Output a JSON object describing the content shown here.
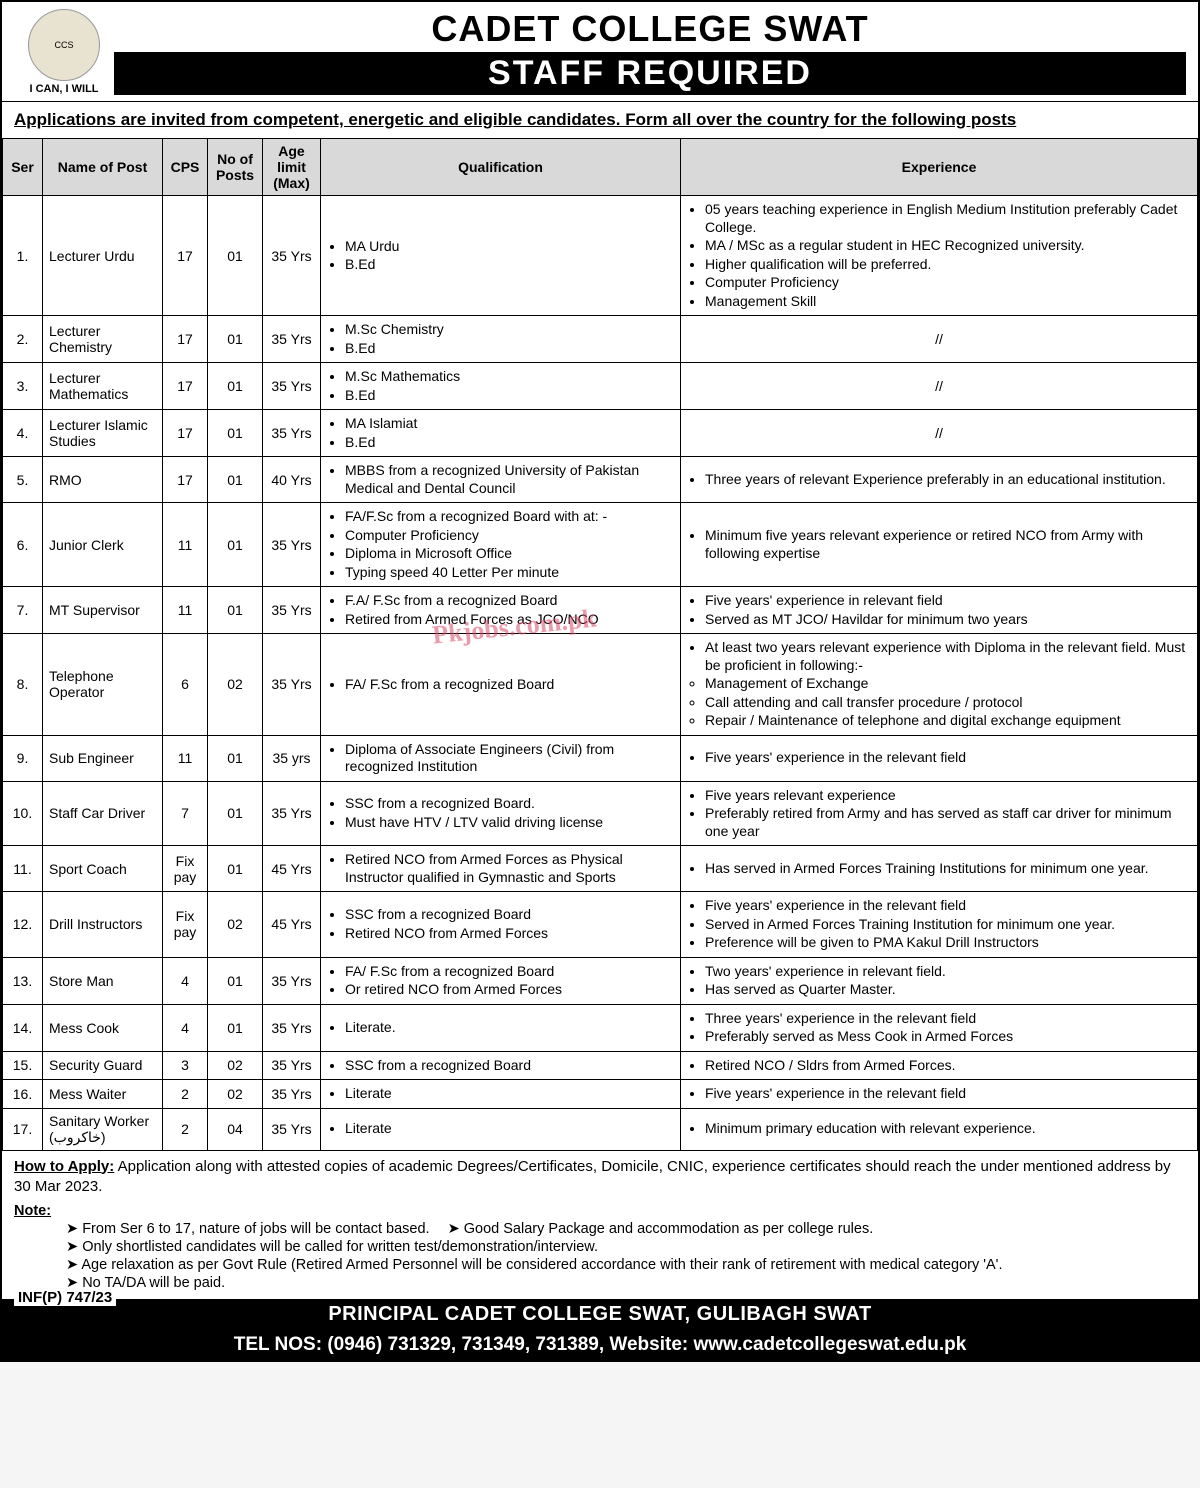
{
  "header": {
    "motto": "I CAN, I WILL",
    "title1": "CADET COLLEGE SWAT",
    "title2": "STAFF REQUIRED"
  },
  "intro": "Applications are invited from competent, energetic and eligible candidates. Form all over the country for the following posts",
  "columns": [
    "Ser",
    "Name of Post",
    "CPS",
    "No of Posts",
    "Age limit (Max)",
    "Qualification",
    "Experience"
  ],
  "col_widths": [
    "40px",
    "120px",
    "45px",
    "55px",
    "58px",
    "360px",
    "auto"
  ],
  "rows": [
    {
      "ser": "1.",
      "post": "Lecturer Urdu",
      "cps": "17",
      "n": "01",
      "age": "35 Yrs",
      "qual": [
        "MA Urdu",
        "B.Ed"
      ],
      "exp": [
        "05 years teaching experience in English Medium Institution preferably Cadet College.",
        "MA / MSc as a regular student in HEC Recognized university.",
        "Higher qualification will be preferred.",
        "Computer Proficiency",
        "Management Skill"
      ]
    },
    {
      "ser": "2.",
      "post": "Lecturer Chemistry",
      "cps": "17",
      "n": "01",
      "age": "35 Yrs",
      "qual": [
        "M.Sc Chemistry",
        "B.Ed"
      ],
      "exp_center": "//"
    },
    {
      "ser": "3.",
      "post": "Lecturer Mathematics",
      "cps": "17",
      "n": "01",
      "age": "35 Yrs",
      "qual": [
        "M.Sc Mathematics",
        "B.Ed"
      ],
      "exp_center": "//"
    },
    {
      "ser": "4.",
      "post": "Lecturer Islamic Studies",
      "cps": "17",
      "n": "01",
      "age": "35 Yrs",
      "qual": [
        "MA Islamiat",
        "B.Ed"
      ],
      "exp_center": "//"
    },
    {
      "ser": "5.",
      "post": "RMO",
      "cps": "17",
      "n": "01",
      "age": "40 Yrs",
      "qual": [
        "MBBS from a recognized University of Pakistan Medical and Dental Council"
      ],
      "exp": [
        "Three years of relevant Experience preferably in an educational institution."
      ]
    },
    {
      "ser": "6.",
      "post": "Junior Clerk",
      "cps": "11",
      "n": "01",
      "age": "35 Yrs",
      "qual": [
        "FA/F.Sc from a recognized Board with at: -",
        "Computer Proficiency",
        "Diploma in Microsoft Office",
        "Typing speed 40 Letter Per minute"
      ],
      "exp": [
        "Minimum five years relevant experience or retired NCO from Army with following expertise"
      ]
    },
    {
      "ser": "7.",
      "post": "MT Supervisor",
      "cps": "11",
      "n": "01",
      "age": "35 Yrs",
      "qual": [
        "F.A/ F.Sc from a recognized Board",
        "Retired from Armed Forces as JCO/NCO"
      ],
      "exp": [
        "Five years' experience in relevant field",
        "Served as MT JCO/ Havildar for minimum two years"
      ]
    },
    {
      "ser": "8.",
      "post": "Telephone Operator",
      "cps": "6",
      "n": "02",
      "age": "35 Yrs",
      "qual": [
        "FA/ F.Sc from a recognized Board"
      ],
      "exp": [
        "At least two years relevant experience with Diploma in the relevant field. Must be proficient in following:-"
      ],
      "exp_sub": [
        "Management of Exchange",
        "Call attending and call transfer procedure / protocol",
        "Repair / Maintenance of telephone and  digital exchange equipment"
      ]
    },
    {
      "ser": "9.",
      "post": "Sub Engineer",
      "cps": "11",
      "n": "01",
      "age": "35 yrs",
      "qual": [
        "Diploma of Associate Engineers (Civil) from recognized Institution"
      ],
      "exp": [
        " Five years' experience in the relevant field"
      ]
    },
    {
      "ser": "10.",
      "post": "Staff Car Driver",
      "cps": "7",
      "n": "01",
      "age": "35 Yrs",
      "qual": [
        "SSC from a recognized Board.",
        "Must have HTV / LTV valid driving license"
      ],
      "exp": [
        "Five years relevant experience",
        "Preferably retired from Army  and has served as staff car driver for minimum one year"
      ]
    },
    {
      "ser": "11.",
      "post": "Sport Coach",
      "cps": "Fix pay",
      "n": "01",
      "age": "45 Yrs",
      "qual": [
        "Retired NCO from Armed Forces as Physical Instructor qualified in Gymnastic and Sports"
      ],
      "exp": [
        "Has served in Armed Forces Training Institutions for minimum one year."
      ]
    },
    {
      "ser": "12.",
      "post": "Drill Instructors",
      "cps": "Fix pay",
      "n": "02",
      "age": "45 Yrs",
      "qual": [
        "SSC from a recognized Board",
        "Retired NCO from Armed Forces"
      ],
      "exp": [
        "Five years' experience in the relevant field",
        "Served in Armed Forces Training Institution for minimum one year.",
        "Preference will be given to PMA Kakul Drill Instructors"
      ]
    },
    {
      "ser": "13.",
      "post": "Store Man",
      "cps": "4",
      "n": "01",
      "age": "35 Yrs",
      "qual": [
        "FA/ F.Sc from a recognized Board",
        "Or retired NCO from Armed Forces"
      ],
      "exp": [
        "Two years' experience in relevant field.",
        "Has served as Quarter Master."
      ]
    },
    {
      "ser": "14.",
      "post": "Mess Cook",
      "cps": "4",
      "n": "01",
      "age": "35 Yrs",
      "qual": [
        "Literate."
      ],
      "exp": [
        "Three years' experience in the relevant field",
        "Preferably served as Mess Cook in Armed Forces"
      ]
    },
    {
      "ser": "15.",
      "post": "Security Guard",
      "cps": "3",
      "n": "02",
      "age": "35 Yrs",
      "qual": [
        "SSC from a recognized Board"
      ],
      "exp": [
        "Retired NCO / Sldrs from Armed Forces."
      ]
    },
    {
      "ser": "16.",
      "post": "Mess Waiter",
      "cps": "2",
      "n": "02",
      "age": "35 Yrs",
      "qual": [
        "Literate"
      ],
      "exp": [
        "Five years' experience in the relevant field"
      ]
    },
    {
      "ser": "17.",
      "post": "Sanitary Worker (خاکروب)",
      "cps": "2",
      "n": "04",
      "age": "35 Yrs",
      "qual": [
        "Literate"
      ],
      "exp": [
        "Minimum primary education with relevant experience."
      ]
    }
  ],
  "apply": {
    "label": "How to Apply:",
    "text": " Application along with attested copies of academic Degrees/Certificates, Domicile, CNIC, experience certificates should reach the under mentioned address by 30 Mar 2023."
  },
  "notes": {
    "label": "Note:",
    "lines": [
      [
        "From Ser 6 to 17, nature of jobs will be contact based.",
        "Good Salary Package and accommodation as per college rules."
      ],
      [
        "Only shortlisted candidates will be called for written test/demonstration/interview."
      ],
      [
        "Age relaxation as per Govt Rule (Retired Armed Personnel will be considered accordance with their rank of retirement with medical category 'A'."
      ],
      [
        "No TA/DA will be paid."
      ]
    ]
  },
  "inf": "INF(P) 747/23",
  "footer1": "PRINCIPAL CADET COLLEGE SWAT, GULIBAGH SWAT",
  "footer2": "TEL NOS: (0946) 731329, 731349, 731389, Website: www.cadetcollegeswat.edu.pk",
  "watermark": "Pkjobs.com.pk",
  "colors": {
    "header_bg": "#000000",
    "header_fg": "#ffffff",
    "th_bg": "#d9d9d9",
    "border": "#000000",
    "watermark": "#d94a6a"
  }
}
